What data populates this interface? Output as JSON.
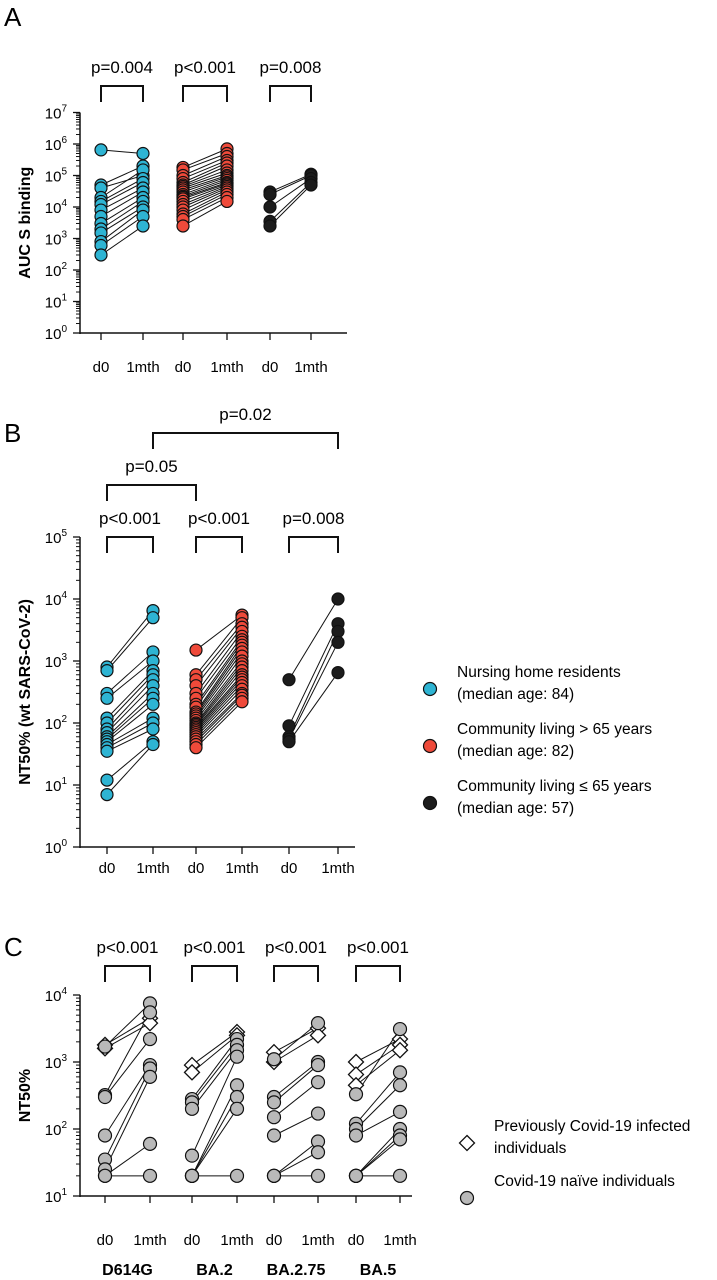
{
  "colors": {
    "nursing": "#2eb4d3",
    "community_over65": "#ef4a3a",
    "community_under65": "#1c1c1c",
    "previously_infected": "#ffffff",
    "naive": "#b9b9b9",
    "line": "#111111"
  },
  "icons": {
    "marker_circle": "filled-circle",
    "marker_diamond": "open-diamond"
  },
  "chart_data": [
    {
      "panel": "A",
      "type": "scatter",
      "scale": "log10",
      "ylabel": "AUC S binding",
      "ylim": [
        1,
        10000000
      ],
      "y_ticks": [
        {
          "base": "10",
          "exp": "0",
          "value": 1
        },
        {
          "base": "10",
          "exp": "1",
          "value": 10
        },
        {
          "base": "10",
          "exp": "2",
          "value": 100
        },
        {
          "base": "10",
          "exp": "3",
          "value": 1000
        },
        {
          "base": "10",
          "exp": "4",
          "value": 10000
        },
        {
          "base": "10",
          "exp": "5",
          "value": 100000
        },
        {
          "base": "10",
          "exp": "6",
          "value": 1000000
        },
        {
          "base": "10",
          "exp": "7",
          "value": 10000000
        }
      ],
      "x_ticks": [
        "d0",
        "1mth",
        "d0",
        "1mth",
        "d0",
        "1mth"
      ],
      "groups": [
        {
          "color": "nursing",
          "marker": "circle",
          "pairs": [
            [
              650000,
              500000
            ],
            [
              50000,
              200000
            ],
            [
              40000,
              100000
            ],
            [
              20000,
              150000
            ],
            [
              15000,
              80000
            ],
            [
              12000,
              60000
            ],
            [
              8000,
              40000
            ],
            [
              5000,
              30000
            ],
            [
              3000,
              20000
            ],
            [
              2000,
              15000
            ],
            [
              1500,
              10000
            ],
            [
              800,
              8000
            ],
            [
              600,
              5000
            ],
            [
              300,
              2500
            ]
          ]
        },
        {
          "color": "community_over65",
          "marker": "circle",
          "pairs": [
            [
              180000,
              700000
            ],
            [
              150000,
              500000
            ],
            [
              100000,
              400000
            ],
            [
              80000,
              300000
            ],
            [
              60000,
              250000
            ],
            [
              50000,
              200000
            ],
            [
              45000,
              150000
            ],
            [
              40000,
              120000
            ],
            [
              35000,
              100000
            ],
            [
              30000,
              90000
            ],
            [
              25000,
              80000
            ],
            [
              22000,
              70000
            ],
            [
              20000,
              60000
            ],
            [
              18000,
              55000
            ],
            [
              15000,
              50000
            ],
            [
              12000,
              45000
            ],
            [
              10000,
              40000
            ],
            [
              8000,
              35000
            ],
            [
              6000,
              30000
            ],
            [
              5000,
              25000
            ],
            [
              4000,
              20000
            ],
            [
              2500,
              15000
            ]
          ]
        },
        {
          "color": "community_under65",
          "marker": "circle",
          "pairs": [
            [
              30000,
              110000
            ],
            [
              25000,
              100000
            ],
            [
              10000,
              80000
            ],
            [
              3500,
              60000
            ],
            [
              2500,
              50000
            ]
          ]
        }
      ],
      "comparisons": [
        {
          "label": "p=0.004",
          "from": 0,
          "to": 1,
          "level": 0
        },
        {
          "label": "p<0.001",
          "from": 2,
          "to": 3,
          "level": 0
        },
        {
          "label": "p=0.008",
          "from": 4,
          "to": 5,
          "level": 0
        }
      ]
    },
    {
      "panel": "B",
      "type": "scatter",
      "scale": "log10",
      "ylabel": "NT50% (wt SARS-CoV-2)",
      "ylim": [
        1,
        100000
      ],
      "y_ticks": [
        {
          "base": "10",
          "exp": "0",
          "value": 1
        },
        {
          "base": "10",
          "exp": "1",
          "value": 10
        },
        {
          "base": "10",
          "exp": "2",
          "value": 100
        },
        {
          "base": "10",
          "exp": "3",
          "value": 1000
        },
        {
          "base": "10",
          "exp": "4",
          "value": 10000
        },
        {
          "base": "10",
          "exp": "5",
          "value": 100000
        }
      ],
      "x_ticks": [
        "d0",
        "1mth",
        "d0",
        "1mth",
        "d0",
        "1mth"
      ],
      "groups": [
        {
          "color": "nursing",
          "marker": "circle",
          "pairs": [
            [
              800,
              6500
            ],
            [
              700,
              5000
            ],
            [
              300,
              1400
            ],
            [
              250,
              1000
            ],
            [
              120,
              700
            ],
            [
              100,
              600
            ],
            [
              80,
              500
            ],
            [
              70,
              400
            ],
            [
              60,
              300
            ],
            [
              55,
              250
            ],
            [
              50,
              200
            ],
            [
              45,
              120
            ],
            [
              40,
              100
            ],
            [
              35,
              80
            ],
            [
              12,
              50
            ],
            [
              7,
              45
            ]
          ]
        },
        {
          "color": "community_over65",
          "marker": "circle",
          "pairs": [
            [
              1500,
              5500
            ],
            [
              600,
              5000
            ],
            [
              500,
              4000
            ],
            [
              400,
              3500
            ],
            [
              300,
              3000
            ],
            [
              250,
              2500
            ],
            [
              200,
              2200
            ],
            [
              180,
              2000
            ],
            [
              150,
              1800
            ],
            [
              140,
              1600
            ],
            [
              130,
              1400
            ],
            [
              120,
              1200
            ],
            [
              110,
              1000
            ],
            [
              100,
              900
            ],
            [
              95,
              800
            ],
            [
              90,
              700
            ],
            [
              85,
              600
            ],
            [
              80,
              550
            ],
            [
              75,
              500
            ],
            [
              70,
              450
            ],
            [
              65,
              400
            ],
            [
              60,
              350
            ],
            [
              55,
              300
            ],
            [
              50,
              280
            ],
            [
              45,
              250
            ],
            [
              40,
              220
            ]
          ]
        },
        {
          "color": "community_under65",
          "marker": "circle",
          "pairs": [
            [
              500,
              10000
            ],
            [
              90,
              4000
            ],
            [
              60,
              3000
            ],
            [
              55,
              2000
            ],
            [
              50,
              650
            ]
          ]
        }
      ],
      "comparisons": [
        {
          "label": "p<0.001",
          "from": 0,
          "to": 1,
          "level": 0
        },
        {
          "label": "p<0.001",
          "from": 2,
          "to": 3,
          "level": 0
        },
        {
          "label": "p=0.008",
          "from": 4,
          "to": 5,
          "level": 0
        },
        {
          "label": "p=0.05",
          "from": 0,
          "to": 2,
          "level": 1
        },
        {
          "label": "p=0.02",
          "from": 1,
          "to": 5,
          "level": 2
        }
      ],
      "legend": [
        {
          "color": "nursing",
          "marker": "circle",
          "lines": [
            "Nursing home residents",
            "(median age: 84)"
          ]
        },
        {
          "color": "community_over65",
          "marker": "circle",
          "lines": [
            "Community living > 65 years",
            "(median age: 82)"
          ]
        },
        {
          "color": "community_under65",
          "marker": "circle",
          "lines": [
            "Community living ≤ 65 years",
            "(median age: 57)"
          ]
        }
      ]
    },
    {
      "panel": "C",
      "type": "scatter",
      "scale": "log10",
      "ylabel": "NT50%",
      "ylim": [
        10,
        10000
      ],
      "y_ticks": [
        {
          "base": "10",
          "exp": "1",
          "value": 10
        },
        {
          "base": "10",
          "exp": "2",
          "value": 100
        },
        {
          "base": "10",
          "exp": "3",
          "value": 1000
        },
        {
          "base": "10",
          "exp": "4",
          "value": 10000
        }
      ],
      "x_ticks": [
        "d0",
        "1mth",
        "d0",
        "1mth",
        "d0",
        "1mth",
        "d0",
        "1mth"
      ],
      "variants": [
        "D614G",
        "BA.2",
        "BA.2.75",
        "BA.5"
      ],
      "groups": [
        {
          "variant": 0,
          "color": "previously_infected",
          "marker": "diamond",
          "pairs": [
            [
              1800,
              4500
            ],
            [
              1600,
              3800
            ]
          ]
        },
        {
          "variant": 0,
          "color": "naive",
          "marker": "circle",
          "pairs": [
            [
              1700,
              7500
            ],
            [
              320,
              5500
            ],
            [
              300,
              2200
            ],
            [
              80,
              900
            ],
            [
              35,
              800
            ],
            [
              25,
              600
            ],
            [
              20,
              60
            ],
            [
              20,
              20
            ]
          ]
        },
        {
          "variant": 1,
          "color": "previously_infected",
          "marker": "diamond",
          "pairs": [
            [
              900,
              2800
            ],
            [
              700,
              2500
            ]
          ]
        },
        {
          "variant": 1,
          "color": "naive",
          "marker": "circle",
          "pairs": [
            [
              280,
              2200
            ],
            [
              250,
              1800
            ],
            [
              200,
              1500
            ],
            [
              40,
              1200
            ],
            [
              20,
              450
            ],
            [
              20,
              300
            ],
            [
              20,
              200
            ],
            [
              20,
              20
            ]
          ]
        },
        {
          "variant": 2,
          "color": "previously_infected",
          "marker": "diamond",
          "pairs": [
            [
              1400,
              3200
            ],
            [
              1000,
              2500
            ]
          ]
        },
        {
          "variant": 2,
          "color": "naive",
          "marker": "circle",
          "pairs": [
            [
              1100,
              3800
            ],
            [
              300,
              1000
            ],
            [
              250,
              900
            ],
            [
              150,
              500
            ],
            [
              80,
              170
            ],
            [
              20,
              65
            ],
            [
              20,
              45
            ],
            [
              20,
              20
            ]
          ]
        },
        {
          "variant": 3,
          "color": "previously_infected",
          "marker": "diamond",
          "pairs": [
            [
              1000,
              2200
            ],
            [
              650,
              1800
            ],
            [
              450,
              1500
            ]
          ]
        },
        {
          "variant": 3,
          "color": "naive",
          "marker": "circle",
          "pairs": [
            [
              330,
              3100
            ],
            [
              120,
              700
            ],
            [
              100,
              450
            ],
            [
              80,
              180
            ],
            [
              20,
              100
            ],
            [
              20,
              80
            ],
            [
              20,
              70
            ],
            [
              20,
              20
            ]
          ]
        }
      ],
      "comparisons": [
        {
          "label": "p<0.001",
          "from": 0,
          "to": 1,
          "level": 0
        },
        {
          "label": "p<0.001",
          "from": 2,
          "to": 3,
          "level": 0
        },
        {
          "label": "p<0.001",
          "from": 4,
          "to": 5,
          "level": 0
        },
        {
          "label": "p<0.001",
          "from": 6,
          "to": 7,
          "level": 0
        }
      ],
      "legend": [
        {
          "color": "previously_infected",
          "marker": "diamond",
          "lines": [
            "Previously Covid-19 infected",
            "individuals"
          ]
        },
        {
          "color": "naive",
          "marker": "circle",
          "lines": [
            "Covid-19 naïve individuals"
          ]
        }
      ]
    }
  ]
}
